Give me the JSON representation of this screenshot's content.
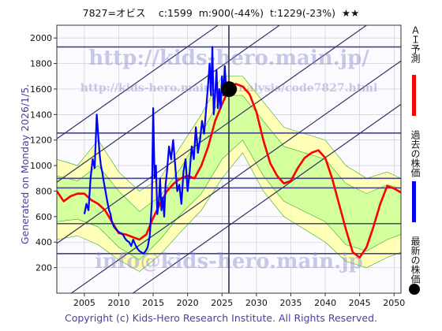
{
  "title": "7827=オビス　 c:1599  m:900(-44%)  t:1229(-23%)  ★★",
  "footer": "Copyright (c) Kids-Hero Research Institute. All Rights Reserved.",
  "side_text": "Generated on Monday 2026/1/5.",
  "watermarks": {
    "top": "http://kids-hero.main.jp/",
    "mid": "http://kids-hero.main.jp/analysis/code7827.html",
    "bottom": "info@kids-hero.main.jp"
  },
  "legend": [
    {
      "label": "ＡＩ予測",
      "color": "#ff0000"
    },
    {
      "label": "過去の株価",
      "color": "#0000ff"
    },
    {
      "label": "最新の株価",
      "color": "#000000"
    }
  ],
  "colors": {
    "past": "#0000ff",
    "forecast": "#ff0000",
    "band_outer": "#ffffaa",
    "band_inner": "#ccff99",
    "band_lines": "#33aa33",
    "trend": "#333366",
    "hline": "#444488",
    "grid": "#c8c8c8"
  },
  "chart_data": {
    "type": "line",
    "xlim": [
      2001,
      2051
    ],
    "ylim": [
      0,
      2100
    ],
    "xticks": [
      2005,
      2010,
      2015,
      2020,
      2025,
      2030,
      2035,
      2040,
      2045,
      2050
    ],
    "yticks": [
      200,
      400,
      600,
      800,
      1000,
      1200,
      1400,
      1600,
      1800,
      2000
    ],
    "grid": true,
    "current_point": {
      "x": 2026.0,
      "y": 1599
    },
    "current_vline_x": 2026.0,
    "horizontal_lines": [
      1930,
      1255,
      900,
      825,
      545,
      310
    ],
    "trend_lines": [
      {
        "x": [
          2001,
          2051
        ],
        "y": [
          1210,
          3110
        ]
      },
      {
        "x": [
          2001,
          2051
        ],
        "y": [
          870,
          2770
        ]
      },
      {
        "x": [
          2001,
          2051
        ],
        "y": [
          390,
          2290
        ]
      },
      {
        "x": [
          2001,
          2051
        ],
        "y": [
          -80,
          1820
        ]
      },
      {
        "x": [
          2001,
          2051
        ],
        "y": [
          -420,
          1480
        ]
      }
    ],
    "series": [
      {
        "name": "過去の株価",
        "x": [
          2005.0,
          2005.3,
          2005.6,
          2005.9,
          2006.2,
          2006.5,
          2006.8,
          2007.0,
          2007.2,
          2007.4,
          2007.6,
          2007.8,
          2008.0,
          2008.2,
          2008.4,
          2008.6,
          2008.8,
          2009.0,
          2009.3,
          2009.6,
          2010.0,
          2010.3,
          2010.6,
          2010.9,
          2011.2,
          2011.5,
          2011.8,
          2012.1,
          2012.4,
          2012.7,
          2013.0,
          2013.3,
          2013.6,
          2013.9,
          2014.2,
          2014.5,
          2014.8,
          2015.0,
          2015.2,
          2015.4,
          2015.6,
          2015.8,
          2016.0,
          2016.2,
          2016.4,
          2016.6,
          2016.8,
          2017.0,
          2017.3,
          2017.6,
          2017.9,
          2018.2,
          2018.5,
          2018.8,
          2019.1,
          2019.4,
          2019.7,
          2020.0,
          2020.3,
          2020.6,
          2020.9,
          2021.2,
          2021.5,
          2021.8,
          2022.1,
          2022.4,
          2022.7,
          2023.0,
          2023.2,
          2023.4,
          2023.6,
          2023.8,
          2024.0,
          2024.2,
          2024.4,
          2024.6,
          2024.8,
          2025.0,
          2025.2,
          2025.4,
          2025.6,
          2025.8,
          2026.0
        ],
        "y": [
          620,
          700,
          650,
          900,
          1050,
          980,
          1400,
          1250,
          1100,
          1000,
          950,
          880,
          820,
          760,
          700,
          650,
          620,
          560,
          520,
          500,
          480,
          470,
          460,
          430,
          410,
          400,
          370,
          420,
          380,
          350,
          330,
          320,
          310,
          330,
          360,
          450,
          700,
          1450,
          900,
          1000,
          620,
          700,
          900,
          650,
          750,
          600,
          850,
          950,
          1150,
          1050,
          1200,
          1000,
          800,
          850,
          700,
          950,
          1050,
          800,
          950,
          1150,
          1050,
          1300,
          1100,
          1200,
          1350,
          1250,
          1450,
          1650,
          1800,
          1550,
          1930,
          1400,
          1550,
          1750,
          1450,
          1600,
          1450,
          1700,
          1550,
          1780,
          1600,
          1550,
          1599
        ]
      },
      {
        "name": "ＡＩ予測",
        "x": [
          2001,
          2002,
          2003,
          2004,
          2005,
          2006,
          2007,
          2008,
          2009,
          2010,
          2011,
          2012,
          2013,
          2014,
          2015,
          2016,
          2017,
          2018,
          2019,
          2020,
          2021,
          2022,
          2023,
          2024,
          2025,
          2026,
          2027,
          2028,
          2029,
          2030,
          2031,
          2032,
          2033,
          2034,
          2035,
          2036,
          2037,
          2038,
          2039,
          2040,
          2041,
          2042,
          2043,
          2044,
          2045,
          2046,
          2047,
          2048,
          2049,
          2050,
          2051
        ],
        "y": [
          800,
          720,
          760,
          780,
          780,
          730,
          700,
          650,
          560,
          470,
          460,
          440,
          420,
          460,
          590,
          700,
          800,
          860,
          900,
          920,
          900,
          1000,
          1150,
          1350,
          1480,
          1600,
          1640,
          1620,
          1560,
          1420,
          1200,
          1020,
          920,
          860,
          880,
          980,
          1060,
          1100,
          1120,
          1060,
          900,
          700,
          500,
          320,
          280,
          360,
          520,
          700,
          840,
          820,
          790
        ]
      }
    ],
    "bands": {
      "x": [
        2001,
        2004,
        2007,
        2010,
        2013,
        2016,
        2019,
        2022,
        2025,
        2028,
        2031,
        2034,
        2037,
        2040,
        2043,
        2046,
        2049,
        2051
      ],
      "outer_low": [
        420,
        450,
        380,
        260,
        170,
        300,
        480,
        650,
        900,
        1100,
        800,
        600,
        500,
        400,
        250,
        200,
        280,
        320
      ],
      "outer_high": [
        1050,
        1000,
        1200,
        950,
        800,
        900,
        1150,
        1400,
        1700,
        1700,
        1500,
        1300,
        1250,
        1200,
        1000,
        900,
        950,
        900
      ],
      "inner_low": [
        560,
        580,
        520,
        360,
        260,
        420,
        620,
        780,
        1050,
        1200,
        920,
        720,
        640,
        560,
        380,
        330,
        420,
        460
      ],
      "inner_high": [
        920,
        880,
        1000,
        800,
        640,
        760,
        980,
        1250,
        1550,
        1550,
        1350,
        1150,
        1100,
        1050,
        860,
        780,
        850,
        820
      ]
    }
  }
}
